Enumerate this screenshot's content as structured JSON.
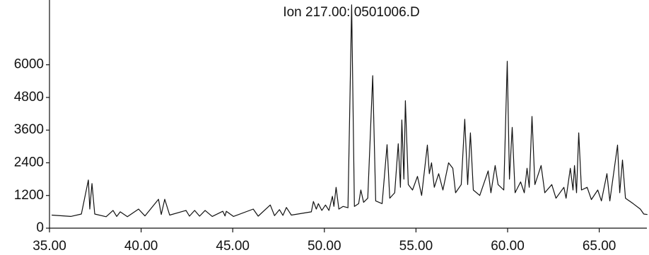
{
  "chart_data": {
    "type": "line",
    "title": "Ion 217.00: 0501006.D",
    "x": [
      35.12,
      36.16,
      36.74,
      37.12,
      37.2,
      37.32,
      37.47,
      38.09,
      38.47,
      38.67,
      38.86,
      39.25,
      39.86,
      40.21,
      40.95,
      41.1,
      41.29,
      41.56,
      42.45,
      42.64,
      42.92,
      43.19,
      43.49,
      43.88,
      44.46,
      44.58,
      44.65,
      45.04,
      46.12,
      46.39,
      47.05,
      47.28,
      47.55,
      47.74,
      47.93,
      48.2,
      49.29,
      49.4,
      49.56,
      49.67,
      49.86,
      50.06,
      50.25,
      50.44,
      50.52,
      50.64,
      50.79,
      51.02,
      51.29,
      51.49,
      51.64,
      51.87,
      51.99,
      52.14,
      52.37,
      52.64,
      52.8,
      53.15,
      53.42,
      53.57,
      53.84,
      54.03,
      54.15,
      54.23,
      54.34,
      54.42,
      54.58,
      54.81,
      55.08,
      55.31,
      55.62,
      55.73,
      55.85,
      56.0,
      56.24,
      56.47,
      56.78,
      57.01,
      57.16,
      57.47,
      57.66,
      57.82,
      57.97,
      58.13,
      58.48,
      58.94,
      59.09,
      59.32,
      59.48,
      59.79,
      59.98,
      60.1,
      60.25,
      60.41,
      60.71,
      60.91,
      61.06,
      61.18,
      61.33,
      61.49,
      61.83,
      62.03,
      62.41,
      62.64,
      63.07,
      63.19,
      63.42,
      63.57,
      63.65,
      63.76,
      63.88,
      64.03,
      64.34,
      64.57,
      64.92,
      65.12,
      65.42,
      65.58,
      66.0,
      66.12,
      66.27,
      66.43,
      66.85,
      67.24,
      67.43,
      67.63
    ],
    "series": [
      {
        "color": "#111111",
        "values": [
          480,
          430,
          520,
          1770,
          700,
          1640,
          520,
          420,
          650,
          430,
          600,
          420,
          700,
          450,
          1060,
          500,
          1060,
          480,
          650,
          440,
          650,
          440,
          650,
          430,
          620,
          450,
          620,
          430,
          700,
          440,
          850,
          460,
          680,
          470,
          760,
          480,
          600,
          980,
          700,
          900,
          650,
          850,
          650,
          1170,
          800,
          1500,
          700,
          800,
          750,
          8200,
          800,
          900,
          1400,
          950,
          1100,
          5600,
          1000,
          900,
          3065,
          1100,
          1300,
          3100,
          1500,
          3970,
          1800,
          4680,
          1600,
          1400,
          1900,
          1200,
          3050,
          2000,
          2400,
          1500,
          2000,
          1400,
          2400,
          2200,
          1300,
          1600,
          4000,
          1600,
          3500,
          1400,
          1200,
          2100,
          1300,
          2300,
          1600,
          1400,
          6130,
          1800,
          3700,
          1300,
          1700,
          1300,
          2200,
          1500,
          4100,
          1600,
          2300,
          1300,
          1600,
          1100,
          1500,
          1100,
          2200,
          1400,
          2300,
          1300,
          3500,
          1400,
          1500,
          1050,
          1400,
          1000,
          2000,
          1000,
          3050,
          1300,
          2500,
          1100,
          900,
          700,
          520,
          500
        ]
      }
    ],
    "xlim": [
      35,
      67.6
    ],
    "xticks": [
      {
        "value": 35,
        "label": "35.00"
      },
      {
        "value": 40,
        "label": "40.00"
      },
      {
        "value": 45,
        "label": "45.00"
      },
      {
        "value": 50,
        "label": "50.00"
      },
      {
        "value": 55,
        "label": "55.00"
      },
      {
        "value": 60,
        "label": "60.00"
      },
      {
        "value": 65,
        "label": "65.00"
      }
    ],
    "ylim": [
      0,
      8300
    ],
    "yticks": [
      0,
      1200,
      2400,
      3600,
      4800,
      6000
    ],
    "grid": false
  }
}
